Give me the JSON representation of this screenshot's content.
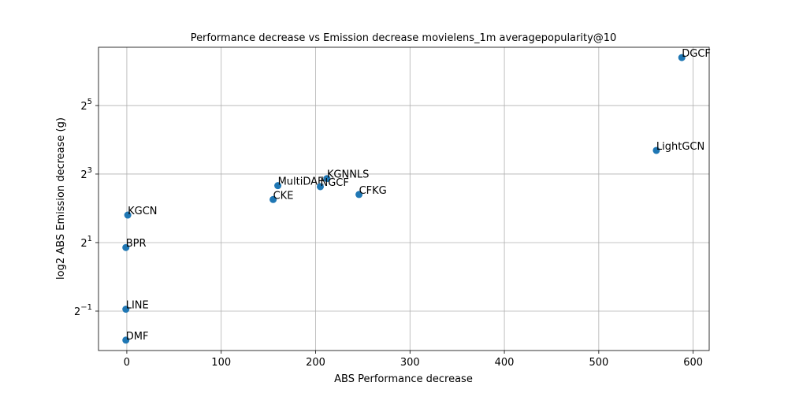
{
  "chart_data": {
    "type": "scatter",
    "title": "Performance decrease vs Emission decrease movielens_1m averagepopularity@10",
    "xlabel": "ABS Performance decrease",
    "ylabel": "log2 ABS Emission decrease (g)",
    "xlim": [
      -30,
      617
    ],
    "ylim_log2": [
      -2.15,
      6.7
    ],
    "y_scale": "log2",
    "grid": true,
    "xticks": [
      0,
      100,
      200,
      300,
      400,
      500,
      600
    ],
    "yticks": [
      {
        "base": "2",
        "exp": "−1",
        "log2": -1
      },
      {
        "base": "2",
        "exp": "1",
        "log2": 1
      },
      {
        "base": "2",
        "exp": "3",
        "log2": 3
      },
      {
        "base": "2",
        "exp": "5",
        "log2": 5
      }
    ],
    "points": [
      {
        "label": "DGCF",
        "x": 588,
        "y": 84.4
      },
      {
        "label": "LightGCN",
        "x": 561,
        "y": 12.9
      },
      {
        "label": "KGNNLS",
        "x": 212,
        "y": 7.3
      },
      {
        "label": "MultiDAE",
        "x": 160,
        "y": 6.33
      },
      {
        "label": "NGCF",
        "x": 205,
        "y": 6.2
      },
      {
        "label": "CFKG",
        "x": 246,
        "y": 5.29
      },
      {
        "label": "CKE",
        "x": 155,
        "y": 4.78
      },
      {
        "label": "KGCN",
        "x": 1,
        "y": 3.49
      },
      {
        "label": "BPR",
        "x": -1,
        "y": 1.81
      },
      {
        "label": "LINE",
        "x": -1,
        "y": 0.52
      },
      {
        "label": "DMF",
        "x": -1,
        "y": 0.278
      }
    ]
  }
}
